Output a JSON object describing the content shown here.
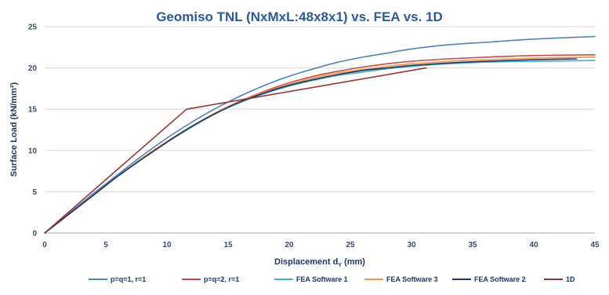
{
  "chart_data": {
    "type": "line",
    "title": "Geomiso TNL (NxMxL:48x8x1) vs. FEA vs. 1D",
    "xlabel": "Displacement d",
    "xlabel_subscript": "Y",
    "xlabel_unit": " (mm)",
    "ylabel": "Surface Load (kN/mm²)",
    "xlim": [
      0,
      45
    ],
    "ylim": [
      0,
      25
    ],
    "x_ticks": [
      "0",
      "5",
      "10",
      "15",
      "20",
      "25",
      "30",
      "35",
      "40",
      "45"
    ],
    "y_ticks": [
      "0",
      "5",
      "10",
      "15",
      "20",
      "25"
    ],
    "grid": "horizontal",
    "legend_position": "bottom",
    "series": [
      {
        "name": "p=q=1, r=1",
        "color": "#4f81bd",
        "points": [
          [
            0,
            0
          ],
          [
            2,
            2.4
          ],
          [
            4,
            4.8
          ],
          [
            6,
            7.1
          ],
          [
            8,
            9.4
          ],
          [
            10,
            11.5
          ],
          [
            12,
            13.4
          ],
          [
            14,
            15.1
          ],
          [
            16,
            16.6
          ],
          [
            18,
            17.9
          ],
          [
            20,
            19.0
          ],
          [
            22,
            19.9
          ],
          [
            24,
            20.7
          ],
          [
            26,
            21.3
          ],
          [
            28,
            21.8
          ],
          [
            30,
            22.3
          ],
          [
            33,
            22.8
          ],
          [
            36,
            23.1
          ],
          [
            40,
            23.5
          ],
          [
            45,
            23.8
          ]
        ]
      },
      {
        "name": "p=q=2, r=1",
        "color": "#c0504d",
        "points": [
          [
            0,
            0
          ],
          [
            2,
            2.3
          ],
          [
            4,
            4.6
          ],
          [
            6,
            6.9
          ],
          [
            8,
            9.1
          ],
          [
            10,
            11.1
          ],
          [
            12,
            12.9
          ],
          [
            14,
            14.6
          ],
          [
            16,
            16.0
          ],
          [
            18,
            17.2
          ],
          [
            20,
            18.2
          ],
          [
            22,
            19.0
          ],
          [
            24,
            19.6
          ],
          [
            26,
            20.1
          ],
          [
            28,
            20.5
          ],
          [
            30,
            20.8
          ],
          [
            33,
            21.1
          ],
          [
            36,
            21.3
          ],
          [
            40,
            21.5
          ],
          [
            45,
            21.6
          ]
        ]
      },
      {
        "name": "FEA Software 1",
        "color": "#4bacc6",
        "points": [
          [
            0,
            0
          ],
          [
            2,
            2.3
          ],
          [
            4,
            4.6
          ],
          [
            6,
            6.9
          ],
          [
            8,
            9.0
          ],
          [
            10,
            11.0
          ],
          [
            12,
            12.8
          ],
          [
            14,
            14.5
          ],
          [
            16,
            15.8
          ],
          [
            18,
            16.9
          ],
          [
            20,
            17.8
          ],
          [
            22,
            18.5
          ],
          [
            24,
            19.1
          ],
          [
            26,
            19.5
          ],
          [
            28,
            19.9
          ],
          [
            30,
            20.2
          ],
          [
            33,
            20.5
          ],
          [
            36,
            20.7
          ],
          [
            40,
            20.8
          ],
          [
            45,
            20.9
          ]
        ]
      },
      {
        "name": "FEA Software 3",
        "color": "#f79646",
        "points": [
          [
            0,
            0
          ],
          [
            2,
            2.3
          ],
          [
            4,
            4.6
          ],
          [
            6,
            6.9
          ],
          [
            8,
            9.1
          ],
          [
            10,
            11.1
          ],
          [
            12,
            12.9
          ],
          [
            14,
            14.6
          ],
          [
            16,
            16.0
          ],
          [
            18,
            17.1
          ],
          [
            20,
            18.0
          ],
          [
            22,
            18.8
          ],
          [
            24,
            19.4
          ],
          [
            26,
            19.8
          ],
          [
            28,
            20.2
          ],
          [
            30,
            20.5
          ],
          [
            33,
            20.8
          ],
          [
            36,
            21.0
          ],
          [
            40,
            21.2
          ],
          [
            45,
            21.3
          ]
        ]
      },
      {
        "name": "FEA Software 2",
        "color": "#1f3864",
        "points": [
          [
            0,
            0
          ],
          [
            2,
            2.3
          ],
          [
            4,
            4.6
          ],
          [
            6,
            6.9
          ],
          [
            8,
            9.0
          ],
          [
            10,
            11.0
          ],
          [
            12,
            12.9
          ],
          [
            14,
            14.5
          ],
          [
            16,
            15.9
          ],
          [
            18,
            17.0
          ],
          [
            20,
            17.9
          ],
          [
            22,
            18.6
          ],
          [
            24,
            19.2
          ],
          [
            26,
            19.7
          ],
          [
            28,
            20.0
          ],
          [
            30,
            20.3
          ],
          [
            33,
            20.6
          ],
          [
            36,
            20.8
          ],
          [
            40,
            21.0
          ],
          [
            43.5,
            21.1
          ]
        ]
      },
      {
        "name": "1D",
        "color": "#953735",
        "points": [
          [
            0,
            0
          ],
          [
            11.6,
            15.0
          ],
          [
            31.2,
            20.0
          ]
        ]
      }
    ]
  }
}
